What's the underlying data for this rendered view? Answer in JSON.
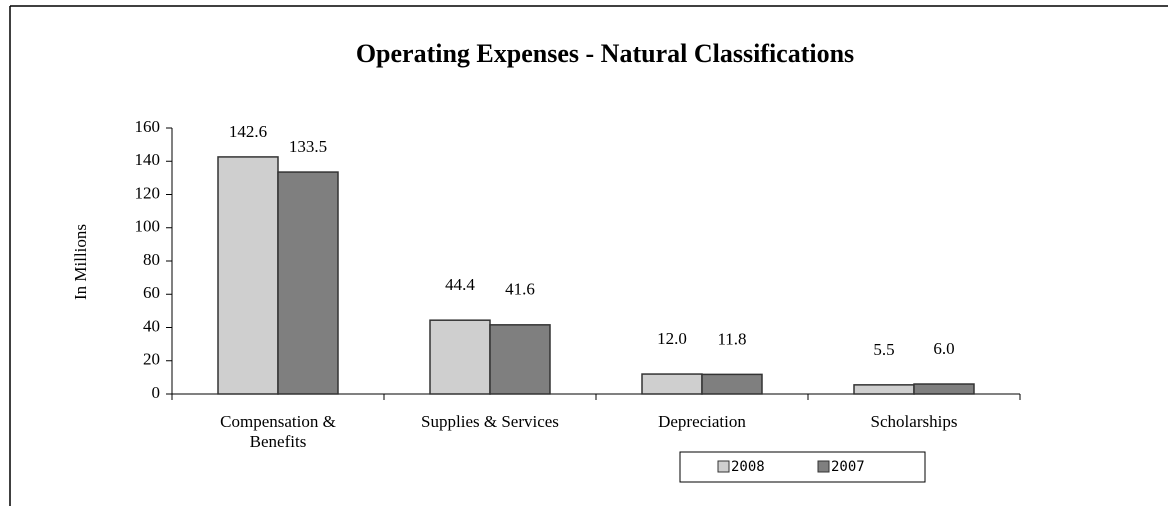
{
  "chart_data": {
    "type": "bar",
    "title": "Operating Expenses - Natural Classifications",
    "ylabel": "In Millions",
    "categories": [
      "Compensation & Benefits",
      "Supplies & Services",
      "Depreciation",
      "Scholarships"
    ],
    "series": [
      {
        "name": "2008",
        "color": "#cfcfcf",
        "values": [
          142.6,
          44.4,
          12.0,
          5.5
        ],
        "value_labels": [
          "142.6",
          "44.4",
          "12.0",
          "5.5"
        ]
      },
      {
        "name": "2007",
        "color": "#7f7f7f",
        "values": [
          133.5,
          41.6,
          11.8,
          6.0
        ],
        "value_labels": [
          "133.5",
          "41.6",
          "11.8",
          "6.0"
        ]
      }
    ],
    "ylim": [
      0,
      160
    ],
    "yticks": [
      0,
      20,
      40,
      60,
      80,
      100,
      120,
      140,
      160
    ],
    "legend": "bottom"
  }
}
